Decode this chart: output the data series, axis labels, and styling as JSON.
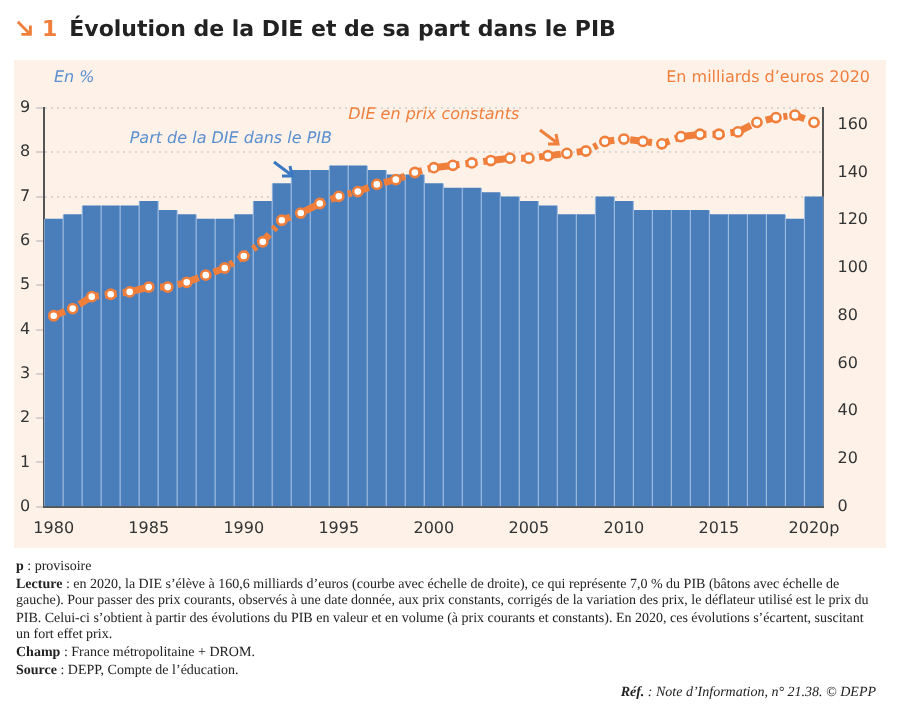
{
  "chart_data": {
    "type": "bar",
    "title": "Évolution de la DIE et de sa part dans le PIB",
    "ylabel": "En %",
    "y2label": "En milliards d’euros 2020",
    "categories": [
      "1980",
      null,
      null,
      null,
      null,
      "1985",
      null,
      null,
      null,
      null,
      "1990",
      null,
      null,
      null,
      null,
      "1995",
      null,
      null,
      null,
      null,
      "2000",
      null,
      null,
      null,
      null,
      "2005",
      null,
      null,
      null,
      null,
      "2010",
      null,
      null,
      null,
      null,
      "2015",
      null,
      null,
      null,
      null,
      "2020p"
    ],
    "series": [
      {
        "name": "Part de la DIE dans le PIB",
        "color": "#4a7ebb",
        "values": [
          6.5,
          6.6,
          6.8,
          6.8,
          6.8,
          6.9,
          6.7,
          6.6,
          6.5,
          6.5,
          6.6,
          6.9,
          7.3,
          7.6,
          7.6,
          7.7,
          7.7,
          7.6,
          7.5,
          7.5,
          7.3,
          7.2,
          7.2,
          7.1,
          7.0,
          6.9,
          6.8,
          6.6,
          6.6,
          7.0,
          6.9,
          6.7,
          6.7,
          6.7,
          6.7,
          6.6,
          6.6,
          6.6,
          6.6,
          6.5,
          7.0
        ]
      },
      {
        "name": "DIE en prix constants",
        "type": "line",
        "axis": "y2",
        "color": "#f07f3c",
        "marker": "circle",
        "line_style": "dashed",
        "values": [
          80,
          83,
          88,
          89,
          90,
          92,
          92,
          94,
          97,
          100,
          105,
          111,
          120,
          123,
          127,
          130,
          132,
          135,
          137,
          140,
          142,
          143,
          144,
          145,
          146,
          146,
          147,
          148,
          149,
          153,
          154,
          153,
          152,
          155,
          156,
          156,
          157,
          161,
          163,
          164,
          161
        ]
      }
    ],
    "ylim": [
      0,
      9
    ],
    "yticks": [
      0,
      1,
      2,
      3,
      4,
      5,
      6,
      7,
      8,
      9
    ],
    "y2lim": [
      0,
      167
    ],
    "y2ticks": [
      0,
      20,
      40,
      60,
      80,
      100,
      120,
      140,
      160
    ],
    "grid": "y",
    "legend": false,
    "annotations": [
      "1",
      "p : provisoire",
      "Lecture : en 2020, la DIE s’élève à 160,6 milliards d’euros (courbe avec échelle de droite), ce qui représente 7,0 % du PIB (bâtons avec échelle de gauche). Pour passer des prix courants, observés à une date donnée, aux prix constants, corrigés de la variation des prix, le déflateur utilisé est le prix du PIB. Celui-ci s’obtient à partir des évolutions du PIB en valeur et en volume (à prix courants et constants). En 2020, ces évolutions s’écartent, suscitant un fort effet prix.",
      "Champ : France métropolitaine + DROM.",
      "Source : DEPP, Compte de l’éducation.",
      "Réf. : Note d’Information, n° 21.38. © DEPP"
    ]
  }
}
